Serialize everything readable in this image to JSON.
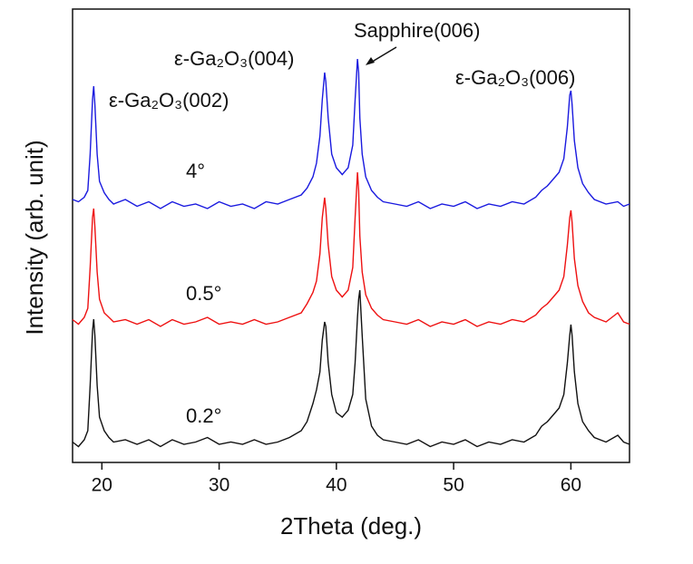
{
  "chart_data": {
    "type": "line",
    "xlabel": "2Theta (deg.)",
    "ylabel": "Intensity (arb. unit)",
    "xlim": [
      17.5,
      65
    ],
    "xticks": [
      20,
      30,
      40,
      50,
      60
    ],
    "ylim": [
      0,
      100
    ],
    "annotations": [
      "ε-Ga₂O₃(002)",
      "ε-Ga₂O₃(004)",
      "Sapphire(006)",
      "ε-Ga₂O₃(006)"
    ],
    "x": [
      17.5,
      18,
      18.5,
      18.8,
      19.0,
      19.2,
      19.3,
      19.4,
      19.6,
      19.8,
      20.2,
      20.6,
      21,
      22,
      23,
      24,
      25,
      26,
      27,
      28,
      29,
      30,
      31,
      32,
      33,
      34,
      35,
      36,
      37,
      37.5,
      38,
      38.3,
      38.6,
      38.8,
      39.0,
      39.1,
      39.3,
      39.6,
      40,
      40.5,
      41,
      41.4,
      41.6,
      41.8,
      41.9,
      42.0,
      42.2,
      42.5,
      43,
      43.5,
      44,
      45,
      46,
      47,
      48,
      49,
      50,
      51,
      52,
      53,
      54,
      55,
      56,
      57,
      57.5,
      58,
      58.5,
      59,
      59.4,
      59.7,
      59.9,
      60.0,
      60.1,
      60.3,
      60.6,
      61,
      61.5,
      62,
      63,
      64,
      64.5,
      65
    ],
    "series": [
      {
        "name": "4°",
        "color": "#1a1adf",
        "values": [
          58,
          57.5,
          58.5,
          60,
          68,
          80,
          83,
          79,
          68,
          62,
          59.5,
          58,
          57,
          58,
          56.5,
          57.5,
          56,
          57.5,
          56.5,
          57,
          56,
          57.5,
          56.5,
          57,
          56,
          57.5,
          57,
          58,
          59,
          60.5,
          63,
          66,
          72,
          80,
          86,
          84,
          76,
          68,
          65,
          63.5,
          65,
          70,
          80,
          89,
          86,
          76,
          68,
          63,
          60,
          58.5,
          57.5,
          57,
          56.5,
          57.5,
          56,
          57,
          56.5,
          57.5,
          56,
          57,
          56.5,
          57.5,
          57,
          58.5,
          60,
          61,
          62.5,
          64,
          67,
          74,
          81,
          82,
          79,
          71,
          65,
          61.5,
          59.5,
          58,
          57,
          57.5,
          56.5,
          57
        ]
      },
      {
        "name": "0.5°",
        "color": "#ee1111",
        "values": [
          31.5,
          30.5,
          32,
          34,
          43,
          54,
          56,
          52,
          42,
          36,
          33,
          32,
          31,
          31.5,
          30.5,
          31.5,
          30,
          31.5,
          30.5,
          31,
          32,
          30.5,
          31,
          30.5,
          31.5,
          30.5,
          31,
          32,
          33,
          35,
          37.5,
          40,
          46,
          54,
          58.4,
          56,
          48,
          41,
          38,
          36.5,
          38,
          43,
          54,
          64,
          60,
          50,
          42,
          37,
          34,
          32.5,
          31.5,
          31,
          30.5,
          31.5,
          30,
          31,
          30.5,
          31.5,
          30,
          31,
          30.5,
          31.5,
          31,
          32.5,
          34,
          35,
          36.5,
          38,
          41,
          48,
          54,
          55.6,
          53,
          45,
          39,
          35.5,
          33,
          32,
          31,
          33,
          31,
          30.5
        ]
      },
      {
        "name": "0.2°",
        "color": "#111111",
        "values": [
          4.5,
          3.5,
          5,
          7,
          17,
          29,
          31.6,
          28,
          17,
          10,
          7,
          5.5,
          4.5,
          5,
          4,
          5,
          3.5,
          5,
          4,
          4.5,
          5.5,
          4,
          4.5,
          4,
          5,
          4,
          4.5,
          5.5,
          7,
          9,
          13,
          16,
          20,
          27,
          31,
          30,
          22,
          15,
          11,
          10,
          11.5,
          15,
          22,
          32,
          36,
          38,
          28,
          14,
          8,
          6,
          5,
          4.5,
          4,
          5,
          3.5,
          4.5,
          4,
          5,
          3.5,
          4.5,
          4,
          5,
          4.5,
          6,
          8,
          9,
          10.5,
          12,
          15,
          22,
          28,
          30.4,
          28,
          20,
          13,
          9,
          7,
          5.5,
          4.5,
          6,
          4.5,
          4
        ]
      }
    ]
  }
}
